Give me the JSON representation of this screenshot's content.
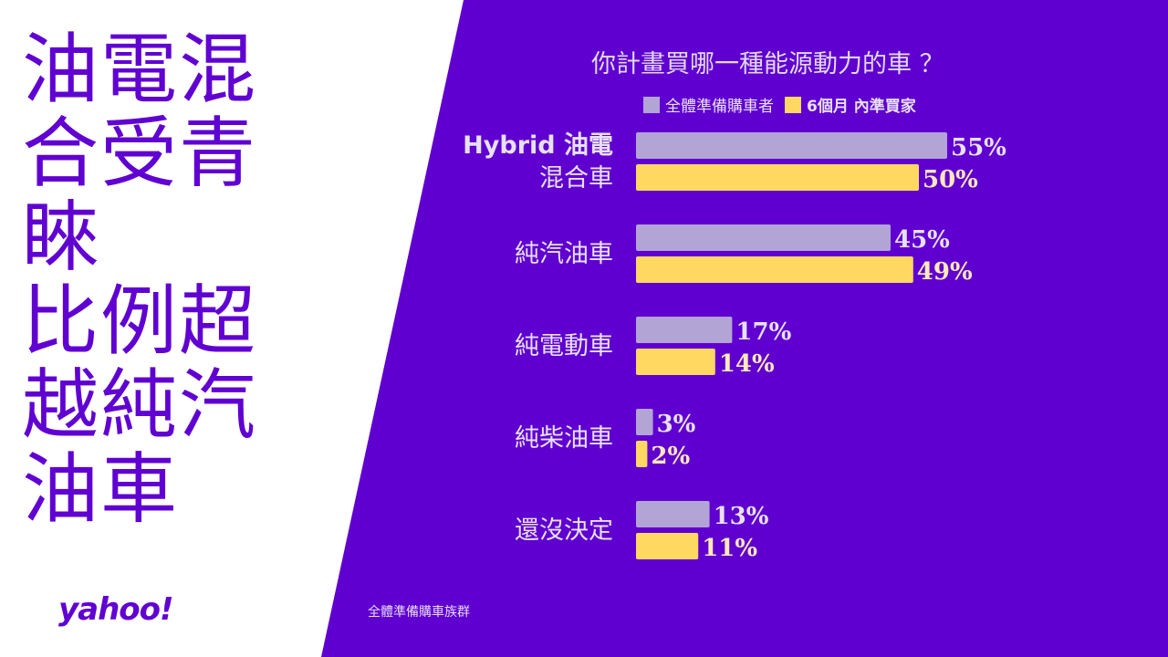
{
  "headline": [
    "油電混",
    "合受青",
    "睞",
    "比例超",
    "越純汽",
    "油車"
  ],
  "logo": "yahoo!",
  "footnote": "全體準備購車族群",
  "colors": {
    "background": "#5f00d0",
    "series_all": "#b3a4d6",
    "series_6m": "#ffd862",
    "label": "#e8e0f5"
  },
  "chart_data": {
    "type": "bar",
    "orientation": "horizontal",
    "title": "你計畫買哪一種能源動力的車 ？",
    "categories": [
      [
        "Hybrid 油電",
        "混合車"
      ],
      [
        "純汽油車"
      ],
      [
        "純電動車"
      ],
      [
        "純柴油車"
      ],
      [
        "還沒決定"
      ]
    ],
    "series": [
      {
        "name": "全體準備購車者",
        "values": [
          55,
          45,
          17,
          3,
          13
        ],
        "labels": [
          "55%",
          "45%",
          "17%",
          "3%",
          "13%"
        ]
      },
      {
        "name": "6個月 內準買家",
        "values": [
          50,
          49,
          14,
          2,
          11
        ],
        "labels": [
          "50%",
          "49%",
          "14%",
          "2%",
          "11%"
        ]
      }
    ],
    "unit": "%",
    "legend": "top",
    "grid": false
  }
}
